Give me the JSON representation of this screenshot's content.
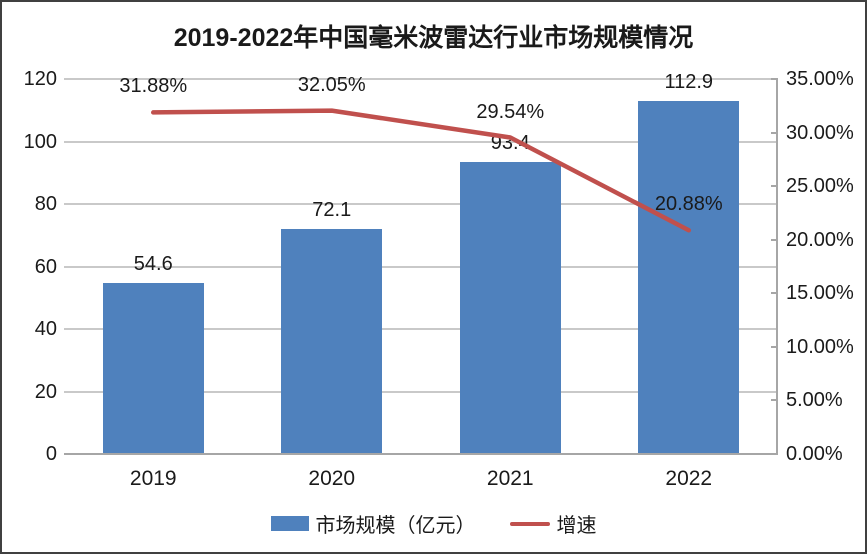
{
  "chart_data": {
    "type": "bar",
    "subtype": "bar-and-line-dual-axis",
    "title": "2019-2022年中国毫米波雷达行业市场规模情况",
    "categories": [
      "2019",
      "2020",
      "2021",
      "2022"
    ],
    "series": [
      {
        "name": "市场规模（亿元）",
        "type": "bar",
        "axis": "left",
        "color": "#4f81bd",
        "values": [
          54.6,
          72.1,
          93.4,
          112.9
        ],
        "labels": [
          "54.6",
          "72.1",
          "93.4",
          "112.9"
        ]
      },
      {
        "name": "增速",
        "type": "line",
        "axis": "right",
        "color": "#c0504d",
        "values": [
          31.88,
          32.05,
          29.54,
          20.88
        ],
        "labels": [
          "31.88%",
          "32.05%",
          "29.54%",
          "20.88%"
        ]
      }
    ],
    "left_axis": {
      "min": 0,
      "max": 120,
      "step": 20,
      "ticks": [
        "0",
        "20",
        "40",
        "60",
        "80",
        "100",
        "120"
      ]
    },
    "right_axis": {
      "min": 0,
      "max": 35,
      "step": 5,
      "ticks": [
        "0.00%",
        "5.00%",
        "10.00%",
        "15.00%",
        "20.00%",
        "25.00%",
        "30.00%",
        "35.00%"
      ]
    },
    "grid": true,
    "legend_position": "bottom",
    "xlabel": "",
    "ylabel_left": "",
    "ylabel_right": ""
  },
  "legend": {
    "items": [
      {
        "label": "市场规模（亿元）",
        "swatch": "bar",
        "color": "#4f81bd"
      },
      {
        "label": "增速",
        "swatch": "line",
        "color": "#c0504d"
      }
    ]
  },
  "colors": {
    "bar": "#4f81bd",
    "line": "#c0504d",
    "gridline": "#c9c9c9",
    "axis": "#a6a6a6",
    "text": "#1a1a1a",
    "border": "#404040",
    "background": "#ffffff"
  }
}
